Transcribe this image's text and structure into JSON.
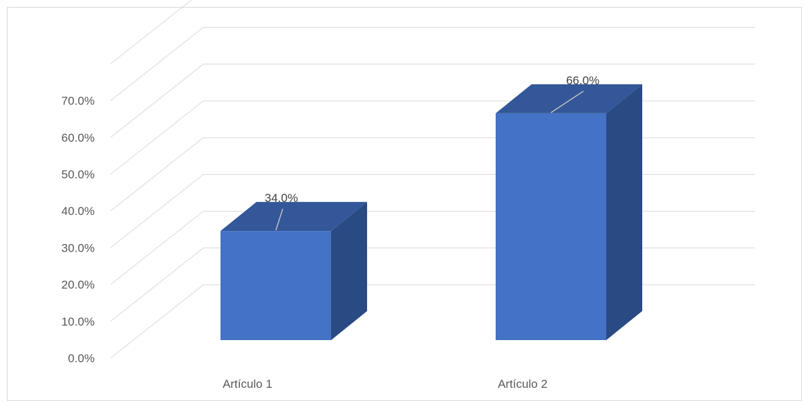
{
  "chart_data": {
    "type": "bar",
    "categories": [
      "Artículo 1",
      "Artículo 2"
    ],
    "values": [
      34.0,
      66.0
    ],
    "value_labels": [
      "34.0%",
      "66.0%"
    ],
    "yticks": [
      "0.0%",
      "10.0%",
      "20.0%",
      "30.0%",
      "40.0%",
      "50.0%",
      "60.0%",
      "70.0%"
    ],
    "ylim": [
      0,
      80
    ],
    "title": "",
    "xlabel": "",
    "ylabel": "",
    "grid": true,
    "legend": "none",
    "style": "3d-column",
    "colors": {
      "front": "#4472c4",
      "top": "#335798",
      "side": "#294a83",
      "grid": "#d9d9d9"
    }
  }
}
